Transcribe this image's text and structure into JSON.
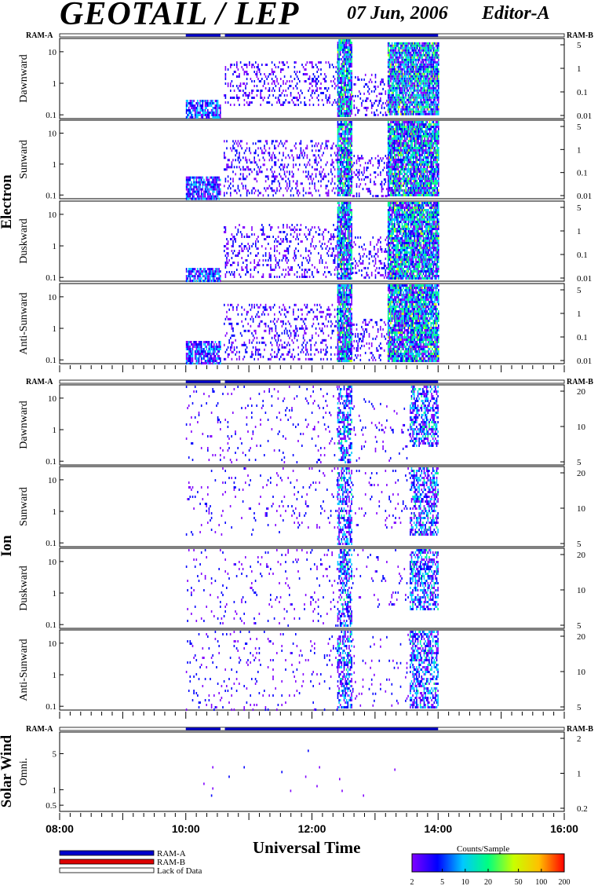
{
  "header": {
    "title": "GEOTAIL / LEP",
    "date": "07 Jun, 2006",
    "editor": "Editor-A"
  },
  "x_axis": {
    "title": "Universal Time",
    "tick_labels": [
      "08:00",
      "10:00",
      "12:00",
      "14:00",
      "16:00"
    ]
  },
  "ram_labels": {
    "left": "RAM-A",
    "right": "RAM-B"
  },
  "legend": {
    "items": [
      {
        "label": "RAM-A",
        "color": "#0000cc"
      },
      {
        "label": "RAM-B",
        "color": "#dd0000"
      },
      {
        "label": "Lack of Data",
        "color": "#ffffff"
      }
    ]
  },
  "colorbar": {
    "title": "Counts/Sample",
    "tick_labels": [
      "2",
      "5",
      "10",
      "20",
      "50",
      "100",
      "200"
    ],
    "colors": [
      "#8000ff",
      "#0000ff",
      "#00c8ff",
      "#00ff80",
      "#c8ff00",
      "#ffc000",
      "#ff0000"
    ]
  },
  "groups": [
    {
      "name": "Electron",
      "panels": [
        "Dawnward",
        "Sunward",
        "Duskward",
        "Anti-Sunward"
      ]
    },
    {
      "name": "Ion",
      "panels": [
        "Dawnward",
        "Sunward",
        "Duskward",
        "Anti-Sunward"
      ]
    },
    {
      "name": "Solar Wind",
      "panels": [
        "Omni."
      ]
    }
  ],
  "chart_data": {
    "type": "heatmap",
    "title": "GEOTAIL / LEP",
    "xlabel": "Universal Time",
    "x_range_hours": [
      8,
      16
    ],
    "data_interval_hours": [
      10.0,
      14.0
    ],
    "ram_a_coverage_hours": [
      [
        10.0,
        10.55
      ],
      [
        10.62,
        14.0
      ]
    ],
    "panels": [
      {
        "group": "Electron",
        "name": "Dawnward",
        "left_ticks": [
          "0.1",
          "1",
          "10"
        ],
        "right_ticks": [
          "5",
          "1",
          "0.1",
          "0.01"
        ],
        "left_scale": "log",
        "intensity": [
          {
            "t": [
              10.0,
              10.55
            ],
            "level": "low",
            "emin": 0.08,
            "emax": 0.3
          },
          {
            "t": [
              10.6,
              12.4
            ],
            "level": "low-sparse",
            "emin": 0.2,
            "emax": 5
          },
          {
            "t": [
              12.4,
              12.62
            ],
            "level": "high",
            "emin": 0.1,
            "emax": 30
          },
          {
            "t": [
              12.62,
              13.2
            ],
            "level": "low-sparse",
            "emin": 0.1,
            "emax": 2
          },
          {
            "t": [
              13.2,
              14.0
            ],
            "level": "high",
            "emin": 0.1,
            "emax": 20
          }
        ]
      },
      {
        "group": "Electron",
        "name": "Sunward",
        "left_ticks": [
          "0.1",
          "1",
          "10"
        ],
        "right_ticks": [
          "5",
          "1",
          "0.1",
          "0.01"
        ],
        "left_scale": "log",
        "intensity": [
          {
            "t": [
              10.0,
              10.55
            ],
            "level": "low",
            "emin": 0.08,
            "emax": 0.4
          },
          {
            "t": [
              10.6,
              12.4
            ],
            "level": "low-sparse",
            "emin": 0.1,
            "emax": 6
          },
          {
            "t": [
              12.4,
              12.62
            ],
            "level": "high",
            "emin": 0.1,
            "emax": 30
          },
          {
            "t": [
              12.62,
              13.2
            ],
            "level": "low-sparse",
            "emin": 0.1,
            "emax": 2
          },
          {
            "t": [
              13.2,
              14.0
            ],
            "level": "high",
            "emin": 0.1,
            "emax": 25
          }
        ]
      },
      {
        "group": "Electron",
        "name": "Duskward",
        "left_ticks": [
          "0.1",
          "1",
          "10"
        ],
        "right_ticks": [
          "5",
          "1",
          "0.1",
          "0.01"
        ],
        "left_scale": "log",
        "intensity": [
          {
            "t": [
              10.0,
              10.55
            ],
            "level": "low",
            "emin": 0.08,
            "emax": 0.2
          },
          {
            "t": [
              10.6,
              12.4
            ],
            "level": "low-sparse",
            "emin": 0.1,
            "emax": 5
          },
          {
            "t": [
              12.4,
              12.62
            ],
            "level": "high",
            "emin": 0.1,
            "emax": 30
          },
          {
            "t": [
              12.62,
              13.2
            ],
            "level": "low-sparse",
            "emin": 0.1,
            "emax": 2
          },
          {
            "t": [
              13.2,
              14.0
            ],
            "level": "high",
            "emin": 0.1,
            "emax": 25
          }
        ]
      },
      {
        "group": "Electron",
        "name": "Anti-Sunward",
        "left_ticks": [
          "0.1",
          "1",
          "10"
        ],
        "right_ticks": [
          "5",
          "1",
          "0.1",
          "0.01"
        ],
        "left_scale": "log",
        "intensity": [
          {
            "t": [
              10.0,
              10.55
            ],
            "level": "low",
            "emin": 0.08,
            "emax": 0.4
          },
          {
            "t": [
              10.6,
              12.4
            ],
            "level": "low-sparse",
            "emin": 0.1,
            "emax": 6
          },
          {
            "t": [
              12.4,
              12.62
            ],
            "level": "high",
            "emin": 0.1,
            "emax": 30
          },
          {
            "t": [
              12.62,
              13.2
            ],
            "level": "low-sparse",
            "emin": 0.1,
            "emax": 2
          },
          {
            "t": [
              13.2,
              14.0
            ],
            "level": "high",
            "emin": 0.1,
            "emax": 25
          }
        ]
      },
      {
        "group": "Ion",
        "name": "Dawnward",
        "left_ticks": [
          "0.1",
          "1",
          "10"
        ],
        "right_ticks": [
          "20",
          "10",
          "5"
        ],
        "left_scale": "log",
        "intensity": [
          {
            "t": [
              10.0,
              12.4
            ],
            "level": "sparse",
            "emin": 0.1,
            "emax": 30
          },
          {
            "t": [
              12.4,
              12.62
            ],
            "level": "medium",
            "emin": 0.1,
            "emax": 40
          },
          {
            "t": [
              12.62,
              13.55
            ],
            "level": "sparse",
            "emin": 0.1,
            "emax": 10
          },
          {
            "t": [
              13.55,
              14.0
            ],
            "level": "medium",
            "emin": 0.3,
            "emax": 40
          }
        ]
      },
      {
        "group": "Ion",
        "name": "Sunward",
        "left_ticks": [
          "0.1",
          "1",
          "10"
        ],
        "right_ticks": [
          "20",
          "10",
          "5"
        ],
        "left_scale": "log",
        "intensity": [
          {
            "t": [
              10.0,
              12.4
            ],
            "level": "sparse",
            "emin": 0.2,
            "emax": 30
          },
          {
            "t": [
              12.4,
              12.62
            ],
            "level": "medium",
            "emin": 0.1,
            "emax": 40
          },
          {
            "t": [
              12.62,
              13.55
            ],
            "level": "sparse",
            "emin": 0.3,
            "emax": 30
          },
          {
            "t": [
              13.55,
              14.0
            ],
            "level": "medium",
            "emin": 0.2,
            "emax": 40
          }
        ]
      },
      {
        "group": "Ion",
        "name": "Duskward",
        "left_ticks": [
          "0.1",
          "1",
          "10"
        ],
        "right_ticks": [
          "20",
          "10",
          "5"
        ],
        "left_scale": "log",
        "intensity": [
          {
            "t": [
              10.0,
              12.4
            ],
            "level": "sparse",
            "emin": 0.1,
            "emax": 40
          },
          {
            "t": [
              12.4,
              12.62
            ],
            "level": "medium",
            "emin": 0.1,
            "emax": 40
          },
          {
            "t": [
              12.62,
              13.55
            ],
            "level": "sparse",
            "emin": 0.3,
            "emax": 40
          },
          {
            "t": [
              13.55,
              14.0
            ],
            "level": "medium",
            "emin": 0.3,
            "emax": 40
          }
        ]
      },
      {
        "group": "Ion",
        "name": "Anti-Sunward",
        "left_ticks": [
          "0.1",
          "1",
          "10"
        ],
        "right_ticks": [
          "20",
          "10",
          "5"
        ],
        "left_scale": "log",
        "intensity": [
          {
            "t": [
              10.0,
              12.4
            ],
            "level": "sparse",
            "emin": 0.08,
            "emax": 30
          },
          {
            "t": [
              12.4,
              12.62
            ],
            "level": "medium",
            "emin": 0.1,
            "emax": 40
          },
          {
            "t": [
              12.62,
              13.55
            ],
            "level": "sparse",
            "emin": 0.1,
            "emax": 20
          },
          {
            "t": [
              13.55,
              14.0
            ],
            "level": "medium",
            "emin": 0.1,
            "emax": 40
          }
        ]
      },
      {
        "group": "Solar Wind",
        "name": "Omni.",
        "left_ticks": [
          "0.5",
          "1",
          "5"
        ],
        "right_ticks": [
          "2",
          "1",
          "0.2"
        ],
        "left_scale": "log",
        "intensity": [
          {
            "t": [
              10.0,
              14.0
            ],
            "level": "very-sparse",
            "emin": 0.8,
            "emax": 6
          }
        ]
      }
    ]
  }
}
